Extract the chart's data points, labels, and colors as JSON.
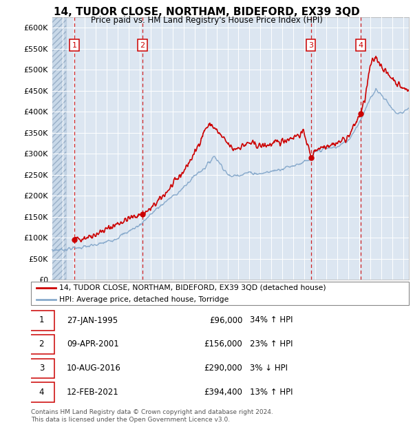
{
  "title": "14, TUDOR CLOSE, NORTHAM, BIDEFORD, EX39 3QD",
  "subtitle": "Price paid vs. HM Land Registry's House Price Index (HPI)",
  "background_color": "#ffffff",
  "plot_bg_color": "#dce6f1",
  "hatch_bg_color": "#c8d8e8",
  "grid_color": "#ffffff",
  "sale_color": "#cc0000",
  "hpi_color": "#88aacc",
  "dashed_line_color": "#cc0000",
  "xlim": [
    1993.0,
    2025.5
  ],
  "ylim": [
    0,
    625000
  ],
  "yticks": [
    0,
    50000,
    100000,
    150000,
    200000,
    250000,
    300000,
    350000,
    400000,
    450000,
    500000,
    550000,
    600000
  ],
  "ytick_labels": [
    "£0",
    "£50K",
    "£100K",
    "£150K",
    "£200K",
    "£250K",
    "£300K",
    "£350K",
    "£400K",
    "£450K",
    "£500K",
    "£550K",
    "£600K"
  ],
  "xtick_start": 1993,
  "xtick_end": 2026,
  "hatch_end": 1994.3,
  "sales": [
    {
      "num": 1,
      "date_x": 1995.07,
      "price": 96000
    },
    {
      "num": 2,
      "date_x": 2001.27,
      "price": 156000
    },
    {
      "num": 3,
      "date_x": 2016.6,
      "price": 290000
    },
    {
      "num": 4,
      "date_x": 2021.12,
      "price": 394400
    }
  ],
  "legend_line1": "14, TUDOR CLOSE, NORTHAM, BIDEFORD, EX39 3QD (detached house)",
  "legend_line2": "HPI: Average price, detached house, Torridge",
  "table_rows": [
    [
      "1",
      "27-JAN-1995",
      "£96,000",
      "34% ↑ HPI"
    ],
    [
      "2",
      "09-APR-2001",
      "£156,000",
      "23% ↑ HPI"
    ],
    [
      "3",
      "10-AUG-2016",
      "£290,000",
      "3% ↓ HPI"
    ],
    [
      "4",
      "12-FEB-2021",
      "£394,400",
      "13% ↑ HPI"
    ]
  ],
  "footnote": "Contains HM Land Registry data © Crown copyright and database right 2024.\nThis data is licensed under the Open Government Licence v3.0."
}
